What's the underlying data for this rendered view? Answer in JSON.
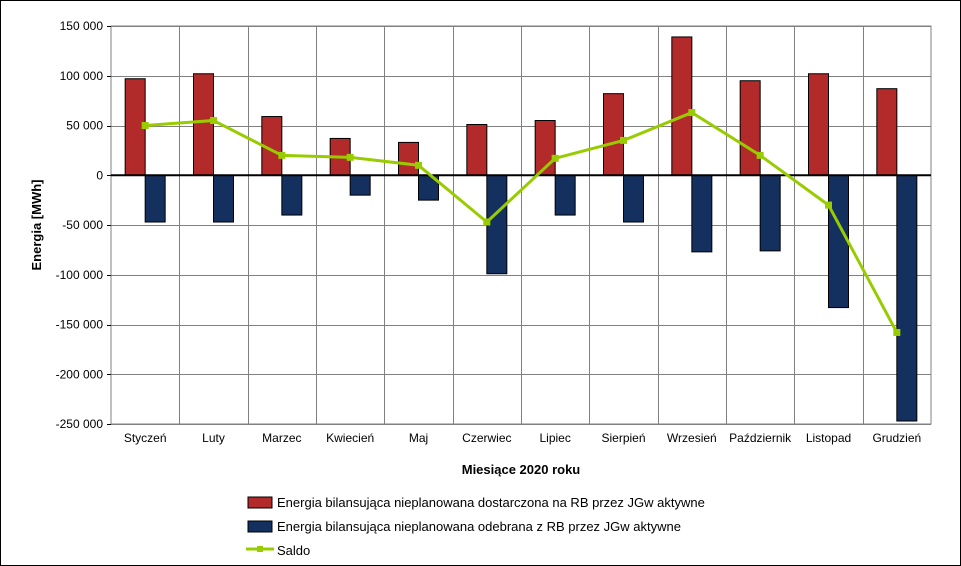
{
  "chart_data": {
    "type": "bar",
    "xlabel": "Miesiące 2020  roku",
    "ylabel": "Energia [MWh]",
    "ylim": [
      -250000,
      150000
    ],
    "yticks": [
      150000,
      100000,
      50000,
      0,
      -50000,
      -100000,
      -150000,
      -200000,
      -250000
    ],
    "ytick_labels": [
      "150 000",
      "100 000",
      "50 000",
      "0",
      "-50 000",
      "-100 000",
      "-150 000",
      "-200 000",
      "-250 000"
    ],
    "grid": true,
    "legend_position": "bottom",
    "categories": [
      "Styczeń",
      "Luty",
      "Marzec",
      "Kwiecień",
      "Maj",
      "Czerwiec",
      "Lipiec",
      "Sierpień",
      "Wrzesień",
      "Październik",
      "Listopad",
      "Grudzień"
    ],
    "series": [
      {
        "name": "Energia bilansująca nieplanowana dostarczona na RB przez JGw aktywne",
        "type": "bar",
        "color": "#b22a2a",
        "values": [
          97000,
          102000,
          59000,
          37000,
          33000,
          51000,
          55000,
          82000,
          139000,
          95000,
          102000,
          87000
        ]
      },
      {
        "name": "Energia bilansująca nieplanowana odebrana z RB przez JGw aktywne",
        "type": "bar",
        "color": "#14305e",
        "values": [
          -47000,
          -47000,
          -40000,
          -20000,
          -25000,
          -99000,
          -40000,
          -47000,
          -77000,
          -76000,
          -133000,
          -247000
        ]
      },
      {
        "name": "Saldo",
        "type": "line",
        "color": "#99cc00",
        "values": [
          50000,
          55000,
          20000,
          18000,
          10000,
          -47000,
          17000,
          35000,
          63000,
          20000,
          -30000,
          -158000
        ]
      }
    ]
  }
}
